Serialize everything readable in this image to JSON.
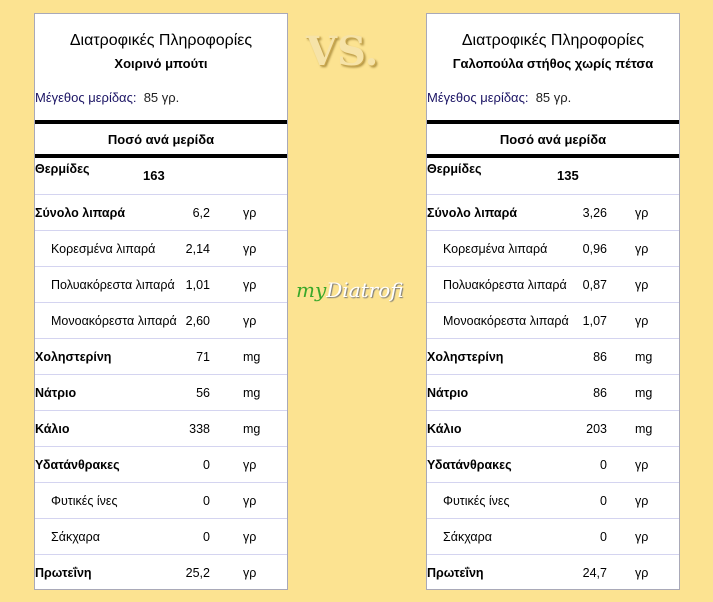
{
  "vs_label": "VS.",
  "logo_text": {
    "my": "my",
    "rest": "Diatrofi"
  },
  "panels": [
    {
      "title": "Διατροφικές Πληροφορίες",
      "food": "Χοιρινό μπούτι",
      "serving_label": "Μέγεθος μερίδας:",
      "serving_value": "85 γρ.",
      "per_serving": "Ποσό ανά μερίδα",
      "rows": [
        {
          "name": "Θερμίδες",
          "value": "163",
          "unit": ""
        },
        {
          "name": "Σύνολο λιπαρά",
          "value": "6,2",
          "unit": "γρ"
        },
        {
          "name": "Κορεσμένα λιπαρά",
          "value": "2,14",
          "unit": "γρ"
        },
        {
          "name": "Πολυακόρεστα λιπαρά",
          "value": "1,01",
          "unit": "γρ"
        },
        {
          "name": "Μονοακόρεστα λιπαρά",
          "value": "2,60",
          "unit": "γρ"
        },
        {
          "name": "Χοληστερίνη",
          "value": "71",
          "unit": "mg"
        },
        {
          "name": "Νάτριο",
          "value": "56",
          "unit": "mg"
        },
        {
          "name": "Κάλιο",
          "value": "338",
          "unit": "mg"
        },
        {
          "name": "Υδατάνθρακες",
          "value": "0",
          "unit": "γρ"
        },
        {
          "name": "Φυτικές ίνες",
          "value": "0",
          "unit": "γρ"
        },
        {
          "name": "Σάκχαρα",
          "value": "0",
          "unit": "γρ"
        },
        {
          "name": "Πρωτεΐνη",
          "value": "25,2",
          "unit": "γρ"
        }
      ]
    },
    {
      "title": "Διατροφικές Πληροφορίες",
      "food": "Γαλοπούλα στήθος χωρίς πέτσα",
      "serving_label": "Μέγεθος μερίδας:",
      "serving_value": "85 γρ.",
      "per_serving": "Ποσό ανά μερίδα",
      "rows": [
        {
          "name": "Θερμίδες",
          "value": "135",
          "unit": ""
        },
        {
          "name": "Σύνολο λιπαρά",
          "value": "3,26",
          "unit": "γρ"
        },
        {
          "name": "Κορεσμένα λιπαρά",
          "value": "0,96",
          "unit": "γρ"
        },
        {
          "name": "Πολυακόρεστα λιπαρά",
          "value": "0,87",
          "unit": "γρ"
        },
        {
          "name": "Μονοακόρεστα λιπαρά",
          "value": "1,07",
          "unit": "γρ"
        },
        {
          "name": "Χοληστερίνη",
          "value": "86",
          "unit": "mg"
        },
        {
          "name": "Νάτριο",
          "value": "86",
          "unit": "mg"
        },
        {
          "name": "Κάλιο",
          "value": "203",
          "unit": "mg"
        },
        {
          "name": "Υδατάνθρακες",
          "value": "0",
          "unit": "γρ"
        },
        {
          "name": "Φυτικές ίνες",
          "value": "0",
          "unit": "γρ"
        },
        {
          "name": "Σάκχαρα",
          "value": "0",
          "unit": "γρ"
        },
        {
          "name": "Πρωτεΐνη",
          "value": "24,7",
          "unit": "γρ"
        }
      ]
    }
  ]
}
